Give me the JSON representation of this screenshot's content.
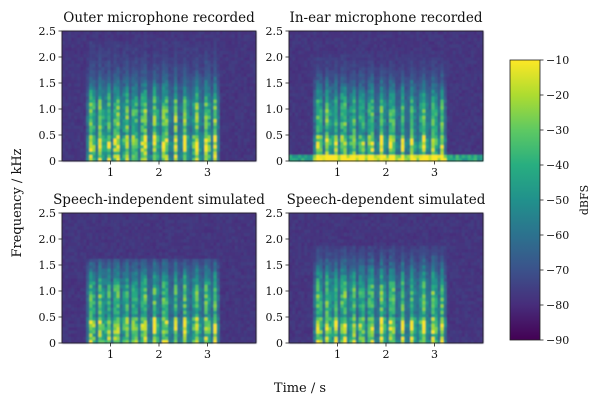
{
  "figure": {
    "xlabel": "Time / s",
    "ylabel": "Frequency / kHz"
  },
  "chart_data": [
    {
      "type": "heatmap",
      "title": "Outer microphone recorded",
      "x_ticks": [
        1,
        2,
        3
      ],
      "y_ticks": [
        0,
        0.5,
        1.0,
        1.5,
        2.0,
        2.5
      ],
      "y_tick_labels": [
        "0",
        "0.5",
        "1.0",
        "1.5",
        "2.0",
        "2.5"
      ],
      "xlim": [
        0,
        4
      ],
      "ylim": [
        0,
        2.5
      ]
    },
    {
      "type": "heatmap",
      "title": "In-ear microphone recorded",
      "x_ticks": [
        1,
        2,
        3
      ],
      "y_ticks": [
        0,
        0.5,
        1.0,
        1.5,
        2.0,
        2.5
      ],
      "y_tick_labels": [
        "0",
        "0.5",
        "1.0",
        "1.5",
        "2.0",
        "2.5"
      ],
      "xlim": [
        0,
        4
      ],
      "ylim": [
        0,
        2.5
      ]
    },
    {
      "type": "heatmap",
      "title": "Speech-independent simulated",
      "x_ticks": [
        1,
        2,
        3
      ],
      "y_ticks": [
        0,
        0.5,
        1.0,
        1.5,
        2.0,
        2.5
      ],
      "y_tick_labels": [
        "0",
        "0.5",
        "1.0",
        "1.5",
        "2.0",
        "2.5"
      ],
      "xlim": [
        0,
        4
      ],
      "ylim": [
        0,
        2.5
      ]
    },
    {
      "type": "heatmap",
      "title": "Speech-dependent simulated",
      "x_ticks": [
        1,
        2,
        3
      ],
      "y_ticks": [
        0,
        0.5,
        1.0,
        1.5,
        2.0,
        2.5
      ],
      "y_tick_labels": [
        "0",
        "0.5",
        "1.0",
        "1.5",
        "2.0",
        "2.5"
      ],
      "xlim": [
        0,
        4
      ],
      "ylim": [
        0,
        2.5
      ]
    }
  ],
  "colorbar": {
    "label": "dBFS",
    "range": [
      -90,
      -10
    ],
    "ticks": [
      -10,
      -20,
      -30,
      -40,
      -50,
      -60,
      -70,
      -80,
      -90
    ],
    "colormap": "viridis",
    "stops": [
      "#440154",
      "#472d7b",
      "#3b528b",
      "#2c728e",
      "#21918c",
      "#28ae80",
      "#5ec962",
      "#addc30",
      "#fde725"
    ]
  }
}
